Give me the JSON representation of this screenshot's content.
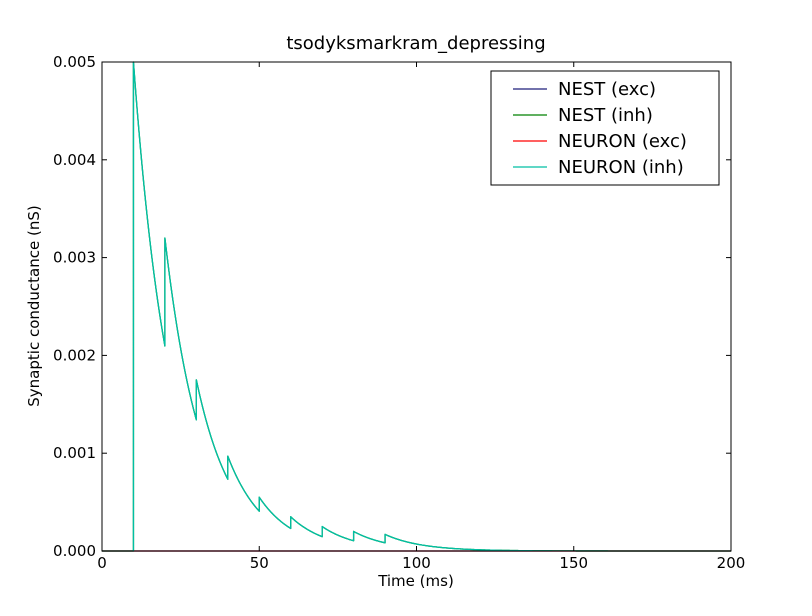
{
  "chart_data": {
    "type": "line",
    "title": "tsodyksmarkram_depressing",
    "xlabel": "Time (ms)",
    "ylabel": "Synaptic conductance (nS)",
    "xlim": [
      0,
      200
    ],
    "ylim": [
      0,
      0.005
    ],
    "x_ticks": [
      "0",
      "50",
      "100",
      "150",
      "200"
    ],
    "y_ticks": [
      "0.000",
      "0.001",
      "0.002",
      "0.003",
      "0.004",
      "0.005"
    ],
    "grid": false,
    "legend_position": "top-right",
    "spike_times": [
      10,
      20,
      30,
      40,
      50,
      60,
      70,
      80,
      90
    ],
    "peak_values": [
      0.005,
      0.0032,
      0.00175,
      0.00097,
      0.00055,
      0.00035,
      0.00025,
      0.0002,
      0.00017
    ],
    "decay_tau_ms": 11.5,
    "series": [
      {
        "name": "NEST (exc)",
        "color": "#1f1f7a",
        "kind": "zero"
      },
      {
        "name": "NEST (inh)",
        "color": "#008000",
        "kind": "depressing"
      },
      {
        "name": "NEURON (exc)",
        "color": "#ff0000",
        "kind": "zero"
      },
      {
        "name": "NEURON (inh)",
        "color": "#00bfa5",
        "kind": "depressing"
      }
    ]
  }
}
